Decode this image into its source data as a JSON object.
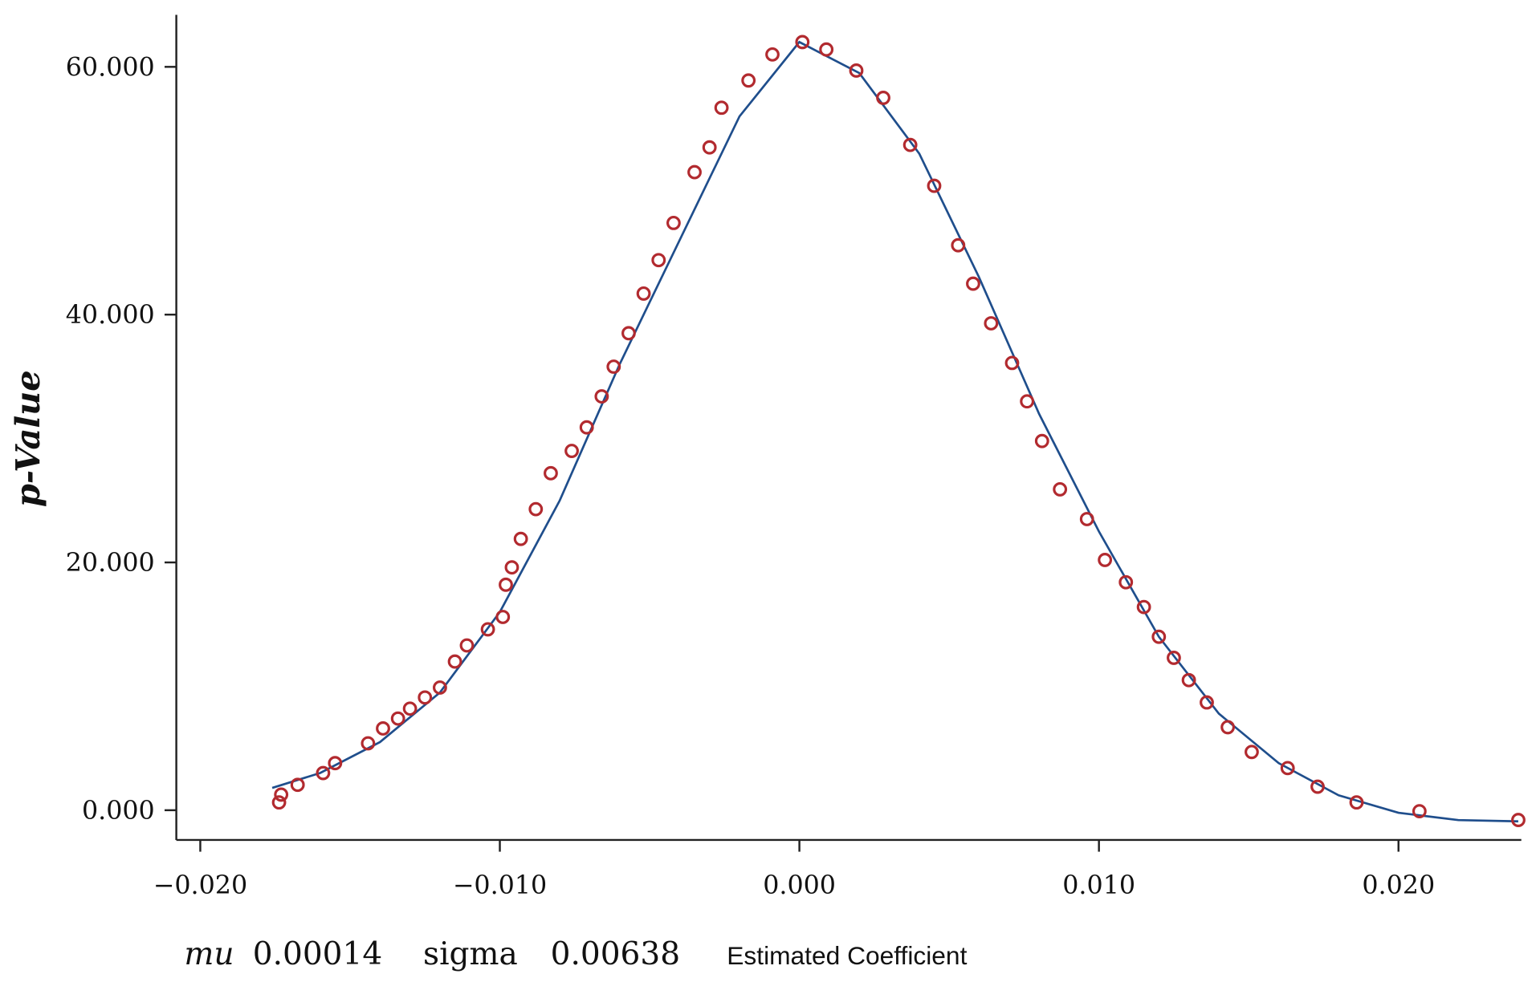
{
  "chart_data": {
    "type": "scatter",
    "y_label": "p-Value",
    "x_label": "Estimated Coefficient",
    "annotation": [
      "mu",
      "0.00014",
      "sigma",
      "0.00638"
    ],
    "xlim": [
      -0.0208,
      0.0241
    ],
    "ylim": [
      -2.4,
      64.2
    ],
    "xticks": [
      {
        "value": -0.02,
        "label": "−0.020"
      },
      {
        "value": -0.01,
        "label": "−0.010"
      },
      {
        "value": 0,
        "label": "0.000"
      },
      {
        "value": 0.01,
        "label": "0.010"
      },
      {
        "value": 0.02,
        "label": "0.020"
      }
    ],
    "yticks": [
      {
        "value": 0,
        "label": "0.000"
      },
      {
        "value": 20,
        "label": "20.000"
      },
      {
        "value": 40,
        "label": "40.000"
      },
      {
        "value": 60,
        "label": "60.000"
      }
    ],
    "grid": false,
    "series": [
      {
        "type": "line",
        "color": "#1f4e8c",
        "x": [
          -0.0176,
          -0.016,
          -0.014,
          -0.012,
          -0.01,
          -0.008,
          -0.006,
          -0.004,
          -0.002,
          0,
          0.002,
          0.004,
          0.006,
          0.008,
          0.01,
          0.012,
          0.014,
          0.016,
          0.018,
          0.02,
          0.022,
          0.024
        ],
        "values": [
          1.8,
          3,
          5.5,
          9.5,
          16,
          25,
          36,
          46,
          56,
          62,
          59.5,
          53,
          43,
          32,
          22.5,
          14,
          7.8,
          3.8,
          1.2,
          -0.2,
          -0.8,
          -0.9
        ]
      },
      {
        "type": "scatter",
        "color": "#b22a2f",
        "x": [
          -0.01737,
          -0.0173,
          -0.01675,
          -0.0159,
          -0.0155,
          -0.0144,
          -0.0139,
          -0.0134,
          -0.013,
          -0.0125,
          -0.012,
          -0.0115,
          -0.0111,
          -0.0104,
          -0.0099,
          -0.0098,
          -0.0096,
          -0.0093,
          -0.0088,
          -0.0083,
          -0.0076,
          -0.0071,
          -0.0066,
          -0.0062,
          -0.0057,
          -0.0052,
          -0.0047,
          -0.0042,
          -0.0035,
          -0.003,
          -0.0026,
          -0.0017,
          -0.0009,
          0.0001,
          0.0009,
          0.0019,
          0.0028,
          0.0037,
          0.0045,
          0.0053,
          0.0058,
          0.0064,
          0.0071,
          0.0076,
          0.0081,
          0.0087,
          0.0096,
          0.0102,
          0.0109,
          0.0115,
          0.012,
          0.0125,
          0.013,
          0.0136,
          0.0143,
          0.0151,
          0.0163,
          0.0173,
          0.0186,
          0.0207,
          0.024
        ],
        "values": [
          0.63,
          1.26,
          2.05,
          3.0,
          3.8,
          5.4,
          6.6,
          7.4,
          8.2,
          9.1,
          9.9,
          12.0,
          13.3,
          14.6,
          15.6,
          18.2,
          19.6,
          21.9,
          24.3,
          27.2,
          29.0,
          30.9,
          33.4,
          35.8,
          38.5,
          41.7,
          44.4,
          47.4,
          51.5,
          53.5,
          56.7,
          58.9,
          61.0,
          62.0,
          61.4,
          59.7,
          57.5,
          53.7,
          50.4,
          45.6,
          42.5,
          39.3,
          36.1,
          33.0,
          29.8,
          25.9,
          23.5,
          20.2,
          18.4,
          16.4,
          14.0,
          12.3,
          10.5,
          8.7,
          6.7,
          4.7,
          3.4,
          1.9,
          0.63,
          -0.08,
          -0.79
        ]
      }
    ]
  }
}
